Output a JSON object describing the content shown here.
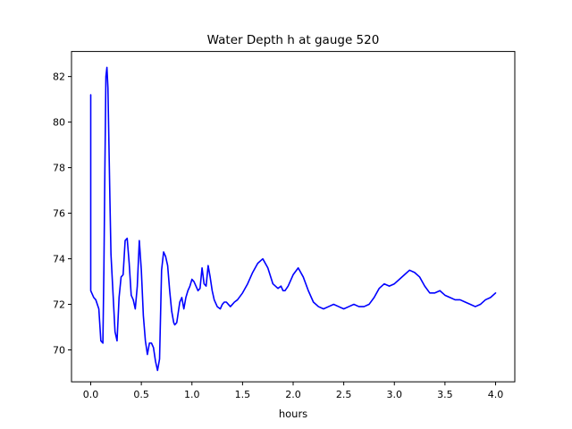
{
  "chart_data": {
    "type": "line",
    "title": "Water Depth h at gauge 520",
    "xlabel": "hours",
    "ylabel": "",
    "xlim": [
      -0.19,
      4.19
    ],
    "ylim": [
      68.6,
      83.1
    ],
    "xticks": [
      0.0,
      0.5,
      1.0,
      1.5,
      2.0,
      2.5,
      3.0,
      3.5,
      4.0
    ],
    "xtick_labels": [
      "0.0",
      "0.5",
      "1.0",
      "1.5",
      "2.0",
      "2.5",
      "3.0",
      "3.5",
      "4.0"
    ],
    "yticks": [
      70,
      72,
      74,
      76,
      78,
      80,
      82
    ],
    "ytick_labels": [
      "70",
      "72",
      "74",
      "76",
      "78",
      "80",
      "82"
    ],
    "grid": false,
    "series": [
      {
        "color": "#0000ff",
        "x": [
          0.0,
          0.0,
          0.01,
          0.03,
          0.05,
          0.08,
          0.1,
          0.12,
          0.13,
          0.14,
          0.15,
          0.16,
          0.17,
          0.18,
          0.19,
          0.2,
          0.22,
          0.24,
          0.26,
          0.28,
          0.3,
          0.32,
          0.34,
          0.36,
          0.38,
          0.4,
          0.42,
          0.44,
          0.46,
          0.48,
          0.5,
          0.52,
          0.54,
          0.56,
          0.58,
          0.6,
          0.62,
          0.64,
          0.66,
          0.68,
          0.7,
          0.72,
          0.74,
          0.76,
          0.78,
          0.8,
          0.82,
          0.83,
          0.85,
          0.86,
          0.88,
          0.9,
          0.92,
          0.94,
          0.96,
          0.98,
          1.0,
          1.02,
          1.04,
          1.06,
          1.08,
          1.1,
          1.12,
          1.14,
          1.16,
          1.18,
          1.2,
          1.22,
          1.25,
          1.28,
          1.3,
          1.32,
          1.34,
          1.36,
          1.38,
          1.4,
          1.42,
          1.45,
          1.5,
          1.55,
          1.6,
          1.65,
          1.7,
          1.75,
          1.8,
          1.85,
          1.88,
          1.9,
          1.92,
          1.95,
          2.0,
          2.05,
          2.1,
          2.15,
          2.2,
          2.25,
          2.3,
          2.35,
          2.4,
          2.45,
          2.5,
          2.55,
          2.6,
          2.65,
          2.7,
          2.75,
          2.8,
          2.85,
          2.9,
          2.95,
          3.0,
          3.05,
          3.1,
          3.15,
          3.2,
          3.25,
          3.3,
          3.35,
          3.4,
          3.45,
          3.5,
          3.55,
          3.6,
          3.65,
          3.7,
          3.75,
          3.8,
          3.85,
          3.9,
          3.95,
          4.0
        ],
        "y": [
          81.2,
          72.6,
          72.5,
          72.3,
          72.2,
          71.8,
          70.4,
          70.3,
          73.5,
          78.0,
          82.0,
          82.4,
          81.5,
          79.0,
          76.5,
          74.2,
          72.5,
          70.8,
          70.4,
          72.3,
          73.2,
          73.3,
          74.8,
          74.9,
          73.8,
          72.4,
          72.2,
          71.8,
          72.8,
          74.8,
          73.5,
          71.5,
          70.4,
          69.8,
          70.3,
          70.3,
          70.1,
          69.5,
          69.1,
          69.6,
          73.5,
          74.3,
          74.1,
          73.7,
          72.6,
          71.7,
          71.2,
          71.1,
          71.2,
          71.5,
          72.1,
          72.3,
          71.8,
          72.3,
          72.6,
          72.8,
          73.1,
          73.0,
          72.8,
          72.6,
          72.7,
          73.6,
          72.9,
          72.8,
          73.7,
          73.2,
          72.6,
          72.2,
          71.9,
          71.8,
          72.0,
          72.1,
          72.1,
          72.0,
          71.9,
          72.0,
          72.1,
          72.2,
          72.5,
          72.9,
          73.4,
          73.8,
          74.0,
          73.6,
          72.9,
          72.7,
          72.8,
          72.6,
          72.6,
          72.8,
          73.3,
          73.6,
          73.2,
          72.6,
          72.1,
          71.9,
          71.8,
          71.9,
          72.0,
          71.9,
          71.8,
          71.9,
          72.0,
          71.9,
          71.9,
          72.0,
          72.3,
          72.7,
          72.9,
          72.8,
          72.9,
          73.1,
          73.3,
          73.5,
          73.4,
          73.2,
          72.8,
          72.5,
          72.5,
          72.6,
          72.4,
          72.3,
          72.2,
          72.2,
          72.1,
          72.0,
          71.9,
          72.0,
          72.2,
          72.3,
          72.5
        ]
      }
    ]
  }
}
